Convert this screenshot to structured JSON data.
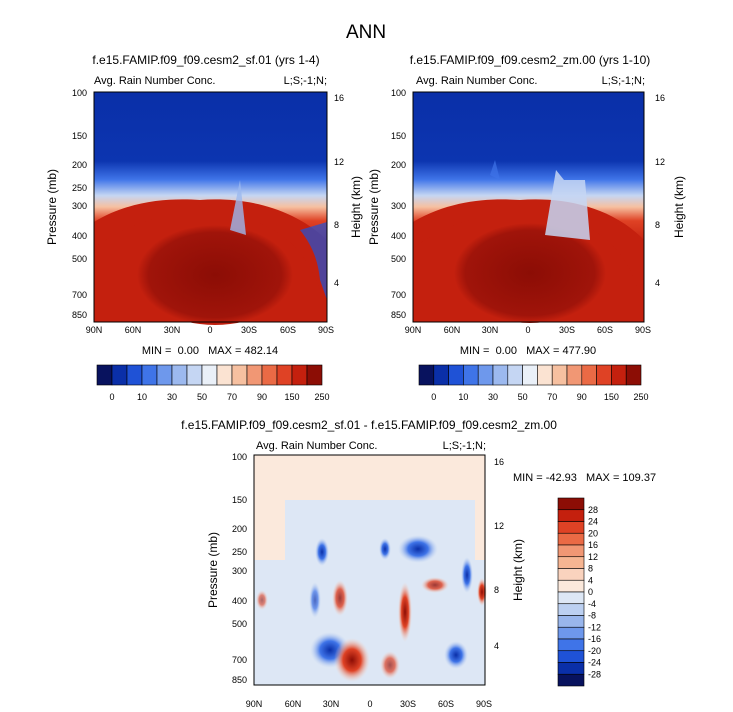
{
  "figure_title": "ANN",
  "chart_data": [
    {
      "type": "heatmap",
      "case": "f.e15.FAMIP.f09_f09.cesm2_sf.01 (yrs 1-4)",
      "variable": "Avg. Rain Number Conc.",
      "tag": "L;S;-1;N;",
      "ylabel": "Pressure (mb)",
      "ylabel_right": "Height (km)",
      "x_ticks": [
        "90N",
        "60N",
        "30N",
        "0",
        "30S",
        "60S",
        "90S"
      ],
      "y_ticks": [
        "100",
        "150",
        "200",
        "250",
        "300",
        "400",
        "500",
        "700",
        "850"
      ],
      "height_ticks": [
        "16",
        "12",
        "8",
        "4"
      ],
      "min": "0.00",
      "max": "482.14",
      "stats": "MIN =  0.00   MAX = 482.14"
    },
    {
      "type": "heatmap",
      "case": "f.e15.FAMIP.f09_f09.cesm2_zm.00 (yrs 1-10)",
      "variable": "Avg. Rain Number Conc.",
      "tag": "L;S;-1;N;",
      "ylabel": "Pressure (mb)",
      "ylabel_right": "Height (km)",
      "x_ticks": [
        "90N",
        "60N",
        "30N",
        "0",
        "30S",
        "60S",
        "90S"
      ],
      "y_ticks": [
        "100",
        "150",
        "200",
        "300",
        "400",
        "500",
        "700",
        "850"
      ],
      "height_ticks": [
        "16",
        "12",
        "8",
        "4"
      ],
      "min": "0.00",
      "max": "477.90",
      "stats": "MIN =  0.00   MAX = 477.90"
    },
    {
      "type": "heatmap",
      "case": "f.e15.FAMIP.f09_f09.cesm2_sf.01 - f.e15.FAMIP.f09_f09.cesm2_zm.00",
      "variable": "Avg. Rain Number Conc.",
      "tag": "L;S;-1;N;",
      "ylabel": "Pressure (mb)",
      "ylabel_right": "Height (km)",
      "x_ticks": [
        "90N",
        "60N",
        "30N",
        "0",
        "30S",
        "60S",
        "90S"
      ],
      "y_ticks": [
        "100",
        "150",
        "200",
        "250",
        "300",
        "400",
        "500",
        "700",
        "850"
      ],
      "height_ticks": [
        "16",
        "12",
        "8",
        "4"
      ],
      "min": "-42.93",
      "max": "109.37",
      "stats": "MIN = -42.93   MAX = 109.37"
    }
  ],
  "colorbar_abs": {
    "labels": [
      "0",
      "10",
      "30",
      "50",
      "70",
      "90",
      "150",
      "250"
    ],
    "colors": [
      "#08125e",
      "#0a2fa8",
      "#1f52d6",
      "#3f74e8",
      "#6e98ec",
      "#9cb9ef",
      "#c5d6f3",
      "#eaf0f8",
      "#fbe3d2",
      "#f6c0a0",
      "#f19774",
      "#ea6a45",
      "#df4225",
      "#c4200e",
      "#8c0d05"
    ]
  },
  "colorbar_diff": {
    "labels": [
      "28",
      "24",
      "20",
      "16",
      "12",
      "8",
      "4",
      "0",
      "-4",
      "-8",
      "-12",
      "-16",
      "-20",
      "-24",
      "-28"
    ],
    "colors": [
      "#8c0d05",
      "#c4200e",
      "#df4225",
      "#ea6a45",
      "#f19774",
      "#f6b592",
      "#fad3be",
      "#fbe9dc",
      "#dde7f5",
      "#bcd0f1",
      "#99b6ec",
      "#6e98ec",
      "#3f74e8",
      "#1f52d6",
      "#0a2fa8",
      "#08125e"
    ]
  }
}
